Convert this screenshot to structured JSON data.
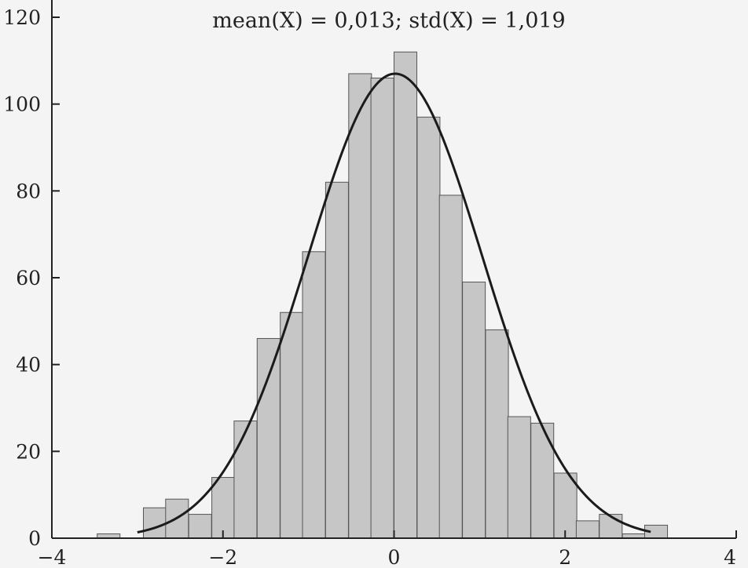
{
  "chart_data": {
    "type": "bar",
    "title": "mean(X) = 0,013; std(X) = 1,019",
    "xlabel": "",
    "ylabel": "",
    "xlim": [
      -4,
      4
    ],
    "ylim": [
      0,
      120
    ],
    "xticks": [
      -4,
      -2,
      0,
      2,
      4
    ],
    "xtick_labels": [
      "−4",
      "−2",
      "0",
      "2",
      "4"
    ],
    "yticks": [
      0,
      20,
      40,
      60,
      80,
      100,
      120
    ],
    "ytick_labels": [
      "0",
      "20",
      "40",
      "60",
      "80",
      "100",
      "120"
    ],
    "grid": false,
    "bin_width": 0.2667,
    "bin_starts": [
      -3.47,
      -2.93,
      -2.67,
      -2.4,
      -2.13,
      -1.87,
      -1.6,
      -1.33,
      -1.07,
      -0.8,
      -0.53,
      -0.27,
      0.0,
      0.27,
      0.53,
      0.8,
      1.07,
      1.33,
      1.6,
      1.87,
      2.13,
      2.4,
      2.67,
      2.93
    ],
    "counts": [
      1,
      7,
      9,
      5.5,
      14,
      27,
      46,
      52,
      66,
      82,
      107,
      106,
      112,
      97,
      79,
      59,
      48,
      28,
      26.5,
      15,
      4,
      5.5,
      1,
      3
    ],
    "fit_curve": {
      "type": "normal-pdf",
      "mean": 0.013,
      "std": 1.019,
      "peak": 107,
      "x_range": [
        -3,
        3
      ]
    },
    "colors": {
      "bar_fill": "#c6c6c6",
      "bar_edge": "#555555",
      "curve": "#1b1b1b",
      "background": "#f4f4f4"
    }
  }
}
